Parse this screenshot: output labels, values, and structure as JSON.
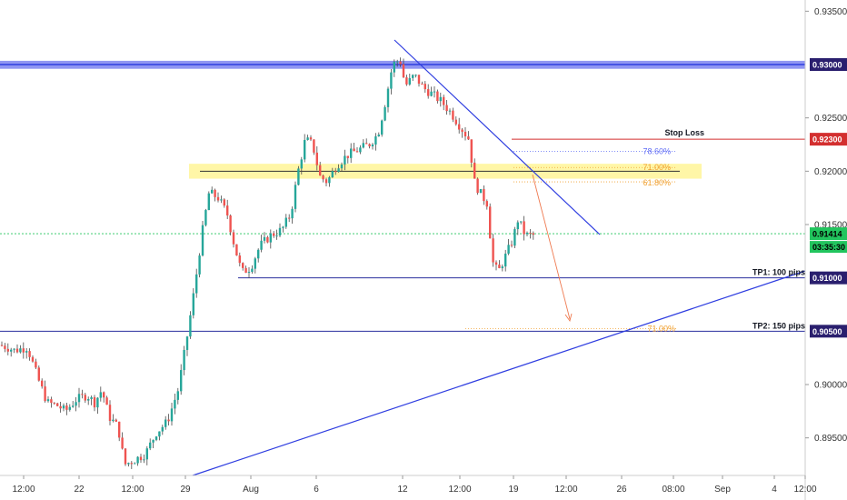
{
  "chart_data": {
    "type": "candlestick",
    "price_axis": {
      "ticks": [
        "0.93500",
        "0.92500",
        "0.92000",
        "0.91500",
        "0.90000",
        "0.89500"
      ]
    },
    "time_axis": {
      "ticks": [
        "12:00",
        "22",
        "12:00",
        "29",
        "Aug",
        "6",
        "12",
        "12:00",
        "19",
        "12:00",
        "26",
        "08:00",
        "Sep",
        "4",
        "12:00"
      ]
    },
    "price_labels": {
      "resistance": "0.93000",
      "stop_loss": "0.92300",
      "current": "0.91414",
      "countdown": "03:35:30",
      "tp1": "0.91000",
      "tp2": "0.90500"
    },
    "annotations": {
      "stop_loss_text": "Stop Loss",
      "tp1_text": "TP1: 100 pips",
      "tp2_text": "TP2: 150 pips",
      "fib_786": "78.60%",
      "fib_710": "71.00%",
      "fib_618": "61.80%",
      "fib_ext": "71.00%"
    },
    "levels": {
      "resistance": 0.93,
      "stop_loss": 0.923,
      "fib_786": 0.92185,
      "fib_710": 0.92035,
      "fib_618": 0.919,
      "zone_top": 0.9207,
      "zone_bottom": 0.9193,
      "current": 0.91414,
      "tp1": 0.91,
      "tp2": 0.905
    },
    "colors": {
      "up": "#26a69a",
      "down": "#ef5350",
      "wick": "#4a4a4a",
      "trend": "#2f3ee0",
      "resistance_band": "#7b82f0",
      "zone": "#fff59d",
      "stop_loss": "#d32f2f",
      "fib_786": "#5f6cf5",
      "fib_orange": "#f0a030",
      "current": "#22c55e",
      "tp_pill": "#2a1f6e",
      "arrow": "#ef7a50"
    }
  }
}
